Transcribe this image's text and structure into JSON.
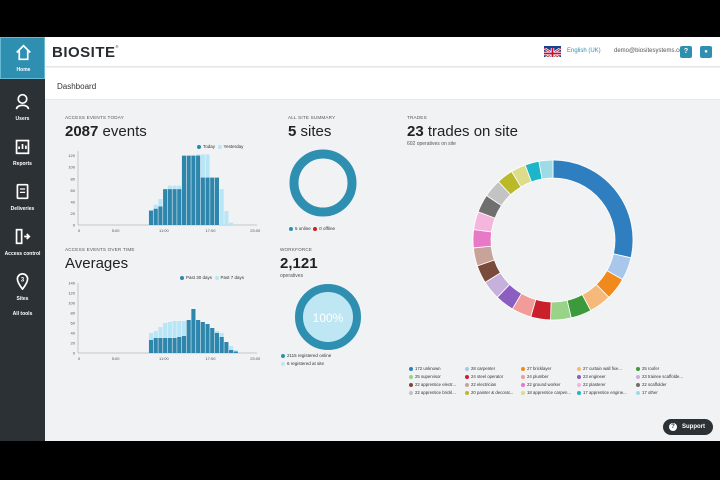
{
  "app": {
    "brand": "BIOSITE",
    "brand_mark": "®"
  },
  "sidebar": {
    "items": [
      {
        "label": "Home",
        "icon": "home-icon"
      },
      {
        "label": "Users",
        "icon": "users-icon"
      },
      {
        "label": "Reports",
        "icon": "reports-icon"
      },
      {
        "label": "Deliveries",
        "icon": "deliveries-icon"
      },
      {
        "label": "Access control",
        "icon": "access-control-icon"
      },
      {
        "label": "Sites",
        "icon": "sites-icon",
        "badge": "3"
      },
      {
        "label": "All tools",
        "icon": ""
      }
    ]
  },
  "header": {
    "language": "English (UK)",
    "email": "demo@biositesystems.com",
    "help": "?",
    "account": "●"
  },
  "page": {
    "breadcrumb": "Dashboard"
  },
  "access_today": {
    "label": "ACCESS EVENTS TODAY",
    "value": "2087",
    "unit": "events",
    "legend_a": "Today",
    "legend_b": "Yesterday"
  },
  "averages": {
    "label": "ACCESS EVENTS OVER TIME",
    "title": "Averages",
    "legend_a": "Past 30 days",
    "legend_b": "Past 7 days"
  },
  "site_summary": {
    "label": "ALL SITE SUMMARY",
    "value": "5",
    "unit": "sites",
    "online_label": "5 online",
    "offline_label": "0 offline"
  },
  "workforce": {
    "label": "WORKFORCE",
    "value": "2,121",
    "sub": "operatives",
    "percent": "100%",
    "registered_online": "2115 registered online",
    "registered_at_site": "6 registered at site"
  },
  "trades_header": {
    "label": "TRADES",
    "value": "23",
    "unit": "trades on site",
    "sub": "602 operatives on site"
  },
  "trades": [
    {
      "label": "172 unknown",
      "count": 172,
      "color": "#2f7fc0"
    },
    {
      "label": "28 carpenter",
      "count": 28,
      "color": "#a9c7ea"
    },
    {
      "label": "27 bricklayer",
      "count": 27,
      "color": "#f08a1c"
    },
    {
      "label": "27 curtain wall fixe...",
      "count": 27,
      "color": "#f5b97a"
    },
    {
      "label": "25 roofer",
      "count": 25,
      "color": "#3b9a3b"
    },
    {
      "label": "25 supervisor",
      "count": 25,
      "color": "#98d388"
    },
    {
      "label": "24 steel operator",
      "count": 24,
      "color": "#c9202b"
    },
    {
      "label": "24 plumber",
      "count": 24,
      "color": "#f29b9b"
    },
    {
      "label": "23 engineer",
      "count": 23,
      "color": "#8c5ec2"
    },
    {
      "label": "23 trainee scaffolde...",
      "count": 23,
      "color": "#c6b1dd"
    },
    {
      "label": "22 apprentice electr...",
      "count": 22,
      "color": "#7a4a3a"
    },
    {
      "label": "22 electrician",
      "count": 22,
      "color": "#c7a39a"
    },
    {
      "label": "22 ground worker",
      "count": 22,
      "color": "#e779c6"
    },
    {
      "label": "22 plasterer",
      "count": 22,
      "color": "#f4b6dc"
    },
    {
      "label": "22 scaffolder",
      "count": 22,
      "color": "#6f6f6f"
    },
    {
      "label": "22 apprentice brickl...",
      "count": 22,
      "color": "#c3c3c3"
    },
    {
      "label": "20 painter & decorat...",
      "count": 20,
      "color": "#b9b92a"
    },
    {
      "label": "18 apprentice carpen...",
      "count": 18,
      "color": "#dcdc8a"
    },
    {
      "label": "17 apprentice engine...",
      "count": 17,
      "color": "#1fb5c8"
    },
    {
      "label": "17 other",
      "count": 17,
      "color": "#9edbe6"
    }
  ],
  "ui": {
    "support": "Support",
    "support_icon": "?"
  },
  "colors": {
    "accent": "#2f8fb0",
    "bar_dark": "#2f86ad",
    "bar_light": "#b8e6f6",
    "offline": "#cc2020"
  },
  "chart_data": [
    {
      "type": "bar",
      "title": "2087 events",
      "series": [
        {
          "name": "Today",
          "values": [
            0,
            0,
            0,
            0,
            0,
            0,
            0,
            0,
            0,
            0,
            0,
            0,
            0,
            0,
            0,
            25,
            28,
            32,
            62,
            62,
            62,
            62,
            120,
            120,
            120,
            120,
            82,
            82,
            82,
            82,
            0,
            0,
            0,
            0,
            0,
            0,
            0,
            0
          ]
        },
        {
          "name": "Yesterday",
          "values": [
            0,
            0,
            0,
            0,
            0,
            0,
            0,
            0,
            0,
            0,
            0,
            0,
            0,
            0,
            0,
            18,
            35,
            45,
            50,
            68,
            68,
            68,
            68,
            68,
            120,
            122,
            122,
            122,
            62,
            62,
            62,
            24,
            4,
            0,
            0,
            0,
            0,
            0
          ]
        }
      ],
      "xticks": [
        "0",
        "5:00",
        "11:00",
        "17:00",
        "23:00"
      ],
      "yticks": [
        "0",
        "20",
        "40",
        "60",
        "80",
        "100",
        "120"
      ],
      "ylim": [
        0,
        128
      ]
    },
    {
      "type": "bar",
      "title": "Averages",
      "series": [
        {
          "name": "Past 30 days",
          "values": [
            0,
            0,
            0,
            0,
            0,
            0,
            0,
            0,
            0,
            0,
            0,
            0,
            0,
            0,
            0,
            26,
            30,
            30,
            30,
            30,
            30,
            32,
            34,
            66,
            88,
            66,
            62,
            58,
            50,
            40,
            32,
            22,
            6,
            3,
            0,
            0,
            0,
            0
          ]
        },
        {
          "name": "Past 7 days",
          "values": [
            0,
            0,
            0,
            0,
            0,
            0,
            0,
            0,
            0,
            0,
            0,
            0,
            0,
            0,
            0,
            40,
            44,
            52,
            60,
            62,
            64,
            64,
            64,
            64,
            64,
            64,
            58,
            58,
            46,
            44,
            40,
            20,
            14,
            6,
            0,
            0,
            0,
            0
          ]
        }
      ],
      "xticks": [
        "0",
        "5:00",
        "11:00",
        "17:00",
        "23:00"
      ],
      "yticks": [
        "0",
        "20",
        "40",
        "60",
        "80",
        "100",
        "120",
        "140"
      ],
      "ylim": [
        0,
        140
      ]
    }
  ]
}
